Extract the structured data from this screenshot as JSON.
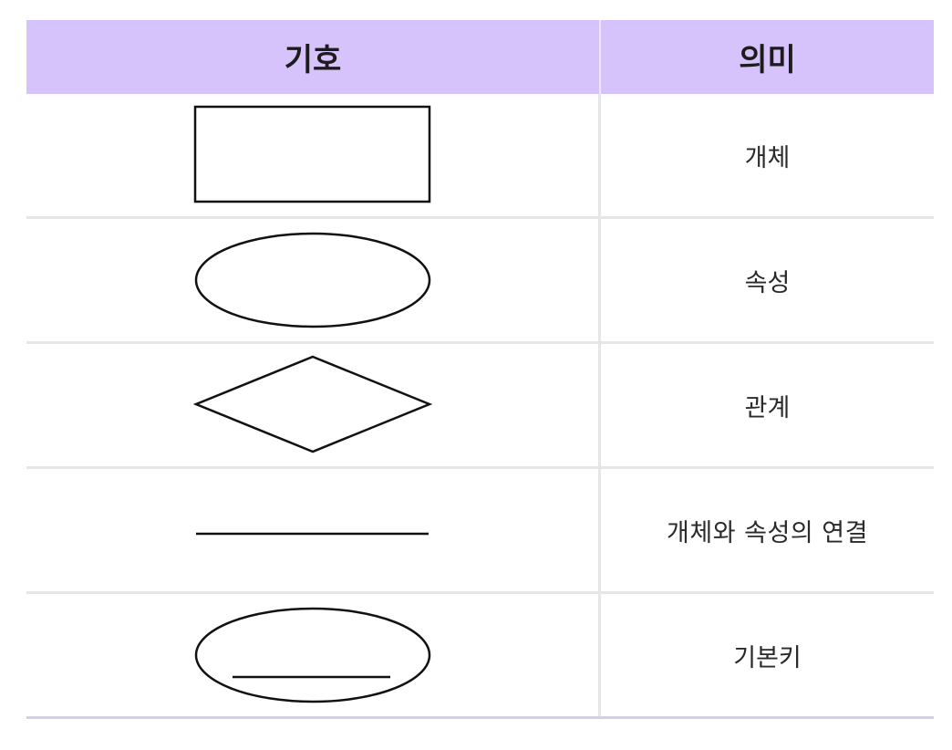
{
  "table": {
    "headers": {
      "symbol": "기호",
      "meaning": "의미"
    },
    "rows": [
      {
        "symbol_icon": "rectangle-icon",
        "meaning": "개체"
      },
      {
        "symbol_icon": "ellipse-icon",
        "meaning": "속성"
      },
      {
        "symbol_icon": "diamond-icon",
        "meaning": "관계"
      },
      {
        "symbol_icon": "line-icon",
        "meaning": "개체와 속성의 연결"
      },
      {
        "symbol_icon": "underlined-ellipse-icon",
        "meaning": "기본키"
      }
    ]
  },
  "colors": {
    "header_background": "#d6c3fb",
    "row_divider": "#e6e6e6",
    "bottom_border": "#d4cdf0",
    "stroke": "#111111"
  }
}
